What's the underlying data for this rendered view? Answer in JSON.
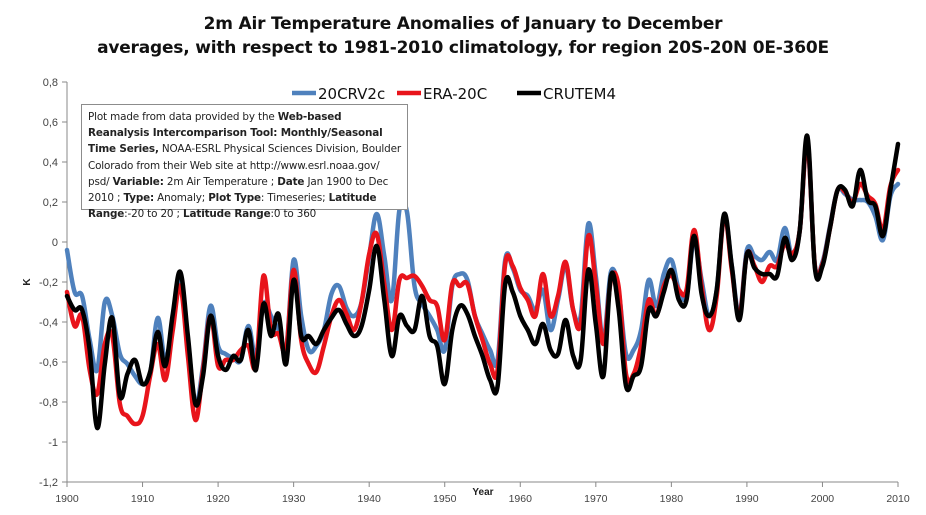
{
  "chart_data": {
    "type": "line",
    "title_lines": [
      "2m Air Temperature Anomalies of January to December",
      "averages, with respect to 1981-2010 climatology, for region 20S-20N 0E-360E"
    ],
    "xlabel": "Year",
    "ylabel": "K",
    "xlim": [
      1900,
      2010
    ],
    "ylim": [
      -1.2,
      0.8
    ],
    "x_ticks": [
      1900,
      1910,
      1920,
      1930,
      1940,
      1950,
      1960,
      1970,
      1980,
      1990,
      2000,
      2010
    ],
    "x_tick_labels": [
      "1900",
      "1910",
      "1920",
      "1930",
      "1940",
      "1950",
      "1960",
      "1970",
      "1980",
      "1990",
      "2000",
      "2010"
    ],
    "y_ticks": [
      -1.2,
      -1,
      -0.8,
      -0.6,
      -0.4,
      -0.2,
      0,
      0.2,
      0.4,
      0.6,
      0.8
    ],
    "y_tick_labels": [
      "-1,2",
      "-1",
      "-0,8",
      "-0,6",
      "-0,4",
      "-0,2",
      "0",
      "0,2",
      "0,4",
      "0,6",
      "0,8"
    ],
    "grid": false,
    "legend_position": "top-center",
    "x_start": 1900,
    "x_step": 1,
    "series": [
      {
        "name": "20CRV2c",
        "color": "#4F81BD",
        "values": [
          -0.04,
          -0.25,
          -0.27,
          -0.49,
          -0.64,
          -0.3,
          -0.37,
          -0.56,
          -0.61,
          -0.67,
          -0.71,
          -0.66,
          -0.38,
          -0.59,
          -0.41,
          -0.19,
          -0.49,
          -0.81,
          -0.62,
          -0.32,
          -0.52,
          -0.56,
          -0.58,
          -0.59,
          -0.42,
          -0.57,
          -0.31,
          -0.37,
          -0.44,
          -0.54,
          -0.09,
          -0.37,
          -0.54,
          -0.52,
          -0.44,
          -0.26,
          -0.22,
          -0.33,
          -0.37,
          -0.3,
          -0.07,
          0.14,
          -0.07,
          -0.29,
          0.16,
          0.15,
          -0.22,
          -0.31,
          -0.37,
          -0.44,
          -0.54,
          -0.22,
          -0.16,
          -0.19,
          -0.37,
          -0.46,
          -0.54,
          -0.59,
          -0.09,
          -0.13,
          -0.24,
          -0.27,
          -0.34,
          -0.24,
          -0.44,
          -0.29,
          -0.12,
          -0.34,
          -0.37,
          0.09,
          -0.17,
          -0.49,
          -0.15,
          -0.24,
          -0.56,
          -0.54,
          -0.44,
          -0.19,
          -0.32,
          -0.16,
          -0.09,
          -0.24,
          -0.27,
          0.01,
          -0.19,
          -0.37,
          -0.24,
          0.13,
          -0.12,
          -0.36,
          -0.04,
          -0.07,
          -0.09,
          -0.05,
          -0.09,
          0.07,
          -0.07,
          0.06,
          0.5,
          -0.12,
          -0.1,
          0.08,
          0.26,
          0.24,
          0.21,
          0.21,
          0.2,
          0.13,
          0.01,
          0.23,
          0.29
        ]
      },
      {
        "name": "ERA-20C",
        "color": "#E8141B",
        "values": [
          -0.25,
          -0.42,
          -0.37,
          -0.64,
          -0.76,
          -0.51,
          -0.47,
          -0.81,
          -0.87,
          -0.91,
          -0.87,
          -0.67,
          -0.51,
          -0.69,
          -0.44,
          -0.22,
          -0.57,
          -0.89,
          -0.64,
          -0.37,
          -0.62,
          -0.59,
          -0.59,
          -0.54,
          -0.52,
          -0.62,
          -0.17,
          -0.44,
          -0.46,
          -0.54,
          -0.14,
          -0.49,
          -0.61,
          -0.65,
          -0.52,
          -0.37,
          -0.29,
          -0.36,
          -0.44,
          -0.3,
          -0.06,
          0.04,
          -0.21,
          -0.44,
          -0.19,
          -0.18,
          -0.17,
          -0.22,
          -0.29,
          -0.32,
          -0.49,
          -0.21,
          -0.22,
          -0.21,
          -0.37,
          -0.49,
          -0.61,
          -0.64,
          -0.11,
          -0.12,
          -0.23,
          -0.29,
          -0.37,
          -0.16,
          -0.37,
          -0.27,
          -0.1,
          -0.34,
          -0.41,
          0.03,
          -0.21,
          -0.51,
          -0.19,
          -0.22,
          -0.66,
          -0.66,
          -0.52,
          -0.29,
          -0.37,
          -0.22,
          -0.17,
          -0.24,
          -0.24,
          0.06,
          -0.22,
          -0.44,
          -0.27,
          0.13,
          -0.14,
          -0.37,
          -0.06,
          -0.12,
          -0.2,
          -0.12,
          -0.12,
          -0.01,
          -0.06,
          0.06,
          0.5,
          -0.12,
          -0.11,
          0.07,
          0.26,
          0.25,
          0.2,
          0.29,
          0.23,
          0.19,
          0.06,
          0.28,
          0.36
        ]
      },
      {
        "name": "CRUTEM4",
        "color": "#000000",
        "values": [
          -0.27,
          -0.34,
          -0.34,
          -0.54,
          -0.93,
          -0.61,
          -0.38,
          -0.77,
          -0.66,
          -0.59,
          -0.71,
          -0.65,
          -0.45,
          -0.62,
          -0.36,
          -0.15,
          -0.47,
          -0.81,
          -0.67,
          -0.37,
          -0.57,
          -0.64,
          -0.57,
          -0.59,
          -0.44,
          -0.64,
          -0.31,
          -0.47,
          -0.36,
          -0.61,
          -0.19,
          -0.47,
          -0.47,
          -0.51,
          -0.44,
          -0.38,
          -0.34,
          -0.41,
          -0.47,
          -0.42,
          -0.24,
          -0.02,
          -0.29,
          -0.57,
          -0.37,
          -0.42,
          -0.44,
          -0.27,
          -0.47,
          -0.52,
          -0.71,
          -0.44,
          -0.32,
          -0.36,
          -0.47,
          -0.57,
          -0.69,
          -0.72,
          -0.21,
          -0.25,
          -0.37,
          -0.44,
          -0.51,
          -0.41,
          -0.54,
          -0.56,
          -0.39,
          -0.57,
          -0.59,
          -0.14,
          -0.41,
          -0.67,
          -0.17,
          -0.33,
          -0.72,
          -0.67,
          -0.62,
          -0.34,
          -0.37,
          -0.25,
          -0.14,
          -0.29,
          -0.29,
          0.03,
          -0.26,
          -0.37,
          -0.24,
          0.14,
          -0.12,
          -0.39,
          -0.06,
          -0.13,
          -0.16,
          -0.16,
          -0.17,
          0.02,
          -0.09,
          0.06,
          0.53,
          -0.13,
          -0.12,
          0.07,
          0.26,
          0.26,
          0.18,
          0.36,
          0.21,
          0.18,
          0.03,
          0.26,
          0.49
        ]
      }
    ],
    "annotation": {
      "parts": [
        {
          "text": "Plot made from data provided by the ",
          "bold": false
        },
        {
          "text": "Web-based Reanalysis Intercomparison Tool: Monthly/Seasonal Time Series,",
          "bold": true
        },
        {
          "text": " NOAA-ESRL Physical Sciences Division, Boulder Colorado from their Web site at http://www.esrl.noaa.gov/ psd/ ",
          "bold": false
        },
        {
          "text": "Variable:",
          "bold": true
        },
        {
          "text": " 2m Air Temperature ; ",
          "bold": false
        },
        {
          "text": "Date",
          "bold": true
        },
        {
          "text": " Jan 1900 to Dec 2010 ; ",
          "bold": false
        },
        {
          "text": "Type:",
          "bold": true
        },
        {
          "text": " Anomaly; ",
          "bold": false
        },
        {
          "text": "Plot Type",
          "bold": true
        },
        {
          "text": ": Timeseries; ",
          "bold": false
        },
        {
          "text": "Latitude Range",
          "bold": true
        },
        {
          "text": ":-20 to 20 ; ",
          "bold": false
        },
        {
          "text": "Latitude Range",
          "bold": true
        },
        {
          "text": ":0 to 360",
          "bold": false
        }
      ]
    }
  }
}
